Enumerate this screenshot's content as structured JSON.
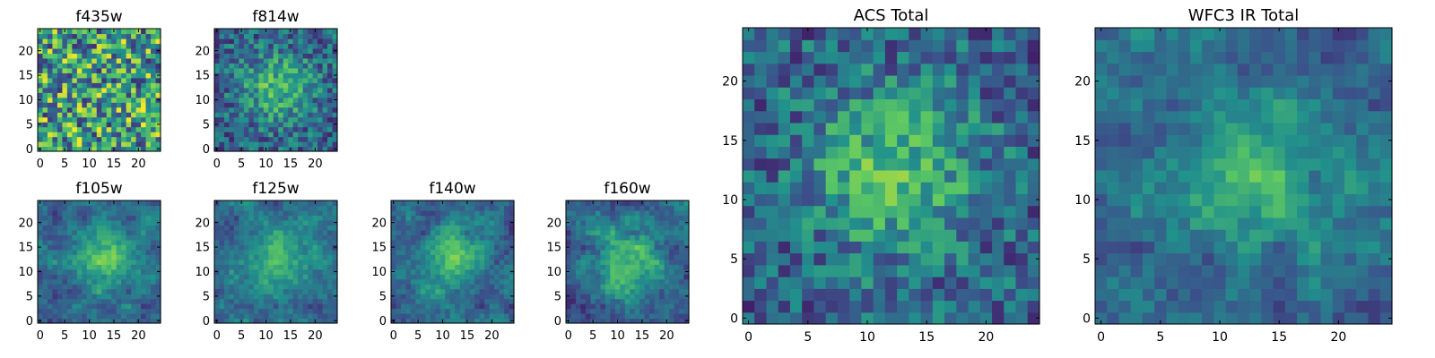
{
  "figure": {
    "colormap": [
      "#440154",
      "#3b528b",
      "#21918c",
      "#5ec962",
      "#fde725"
    ],
    "frame_color": "#000000",
    "background": "#ffffff"
  },
  "chart_data": [
    {
      "type": "heatmap",
      "title": "f435w",
      "grid_size": 25,
      "seed": 11,
      "pattern": "noise",
      "xticks": [
        "0",
        "5",
        "10",
        "15",
        "20"
      ],
      "yticks": [
        "0",
        "5",
        "10",
        "15",
        "20"
      ],
      "xlim": [
        -0.5,
        24.5
      ],
      "ylim": [
        -0.5,
        24.5
      ],
      "xlabel": "",
      "ylabel": ""
    },
    {
      "type": "heatmap",
      "title": "f814w",
      "grid_size": 25,
      "seed": 23,
      "pattern": "noise-center",
      "xticks": [
        "0",
        "5",
        "10",
        "15",
        "20"
      ],
      "yticks": [
        "0",
        "5",
        "10",
        "15",
        "20"
      ],
      "xlim": [
        -0.5,
        24.5
      ],
      "ylim": [
        -0.5,
        24.5
      ],
      "xlabel": "",
      "ylabel": ""
    },
    {
      "type": "heatmap",
      "title": "f105w",
      "grid_size": 25,
      "seed": 37,
      "pattern": "smooth-center",
      "xticks": [
        "0",
        "5",
        "10",
        "15",
        "20"
      ],
      "yticks": [
        "0",
        "5",
        "10",
        "15",
        "20"
      ],
      "xlim": [
        -0.5,
        24.5
      ],
      "ylim": [
        -0.5,
        24.5
      ],
      "xlabel": "",
      "ylabel": ""
    },
    {
      "type": "heatmap",
      "title": "f125w",
      "grid_size": 25,
      "seed": 41,
      "pattern": "smooth-center",
      "xticks": [
        "0",
        "5",
        "10",
        "15",
        "20"
      ],
      "yticks": [
        "0",
        "5",
        "10",
        "15",
        "20"
      ],
      "xlim": [
        -0.5,
        24.5
      ],
      "ylim": [
        -0.5,
        24.5
      ],
      "xlabel": "",
      "ylabel": ""
    },
    {
      "type": "heatmap",
      "title": "f140w",
      "grid_size": 25,
      "seed": 53,
      "pattern": "smooth-center",
      "xticks": [
        "0",
        "5",
        "10",
        "15",
        "20"
      ],
      "yticks": [
        "0",
        "5",
        "10",
        "15",
        "20"
      ],
      "xlim": [
        -0.5,
        24.5
      ],
      "ylim": [
        -0.5,
        24.5
      ],
      "xlabel": "",
      "ylabel": ""
    },
    {
      "type": "heatmap",
      "title": "f160w",
      "grid_size": 25,
      "seed": 67,
      "pattern": "smooth-center",
      "xticks": [
        "0",
        "5",
        "10",
        "15",
        "20"
      ],
      "yticks": [
        "0",
        "5",
        "10",
        "15",
        "20"
      ],
      "xlim": [
        -0.5,
        24.5
      ],
      "ylim": [
        -0.5,
        24.5
      ],
      "xlabel": "",
      "ylabel": ""
    },
    {
      "type": "heatmap",
      "title": "ACS Total",
      "grid_size": 25,
      "seed": 71,
      "pattern": "noise-center",
      "xticks": [
        "0",
        "5",
        "10",
        "15",
        "20"
      ],
      "yticks": [
        "0",
        "5",
        "10",
        "15",
        "20"
      ],
      "xlim": [
        -0.5,
        24.5
      ],
      "ylim": [
        -0.5,
        24.5
      ],
      "xlabel": "",
      "ylabel": ""
    },
    {
      "type": "heatmap",
      "title": "WFC3 IR Total",
      "grid_size": 25,
      "seed": 89,
      "pattern": "smooth-center",
      "xticks": [
        "0",
        "5",
        "10",
        "15",
        "20"
      ],
      "yticks": [
        "0",
        "5",
        "10",
        "15",
        "20"
      ],
      "xlim": [
        -0.5,
        24.5
      ],
      "ylim": [
        -0.5,
        24.5
      ],
      "xlabel": "",
      "ylabel": ""
    }
  ]
}
